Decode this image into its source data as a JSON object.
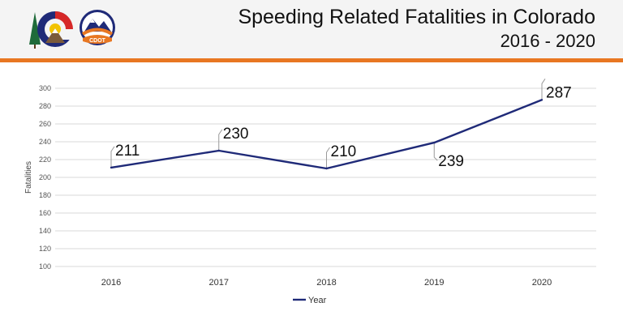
{
  "header": {
    "title": "Speeding Related Fatalities in Colorado",
    "subtitle": "2016 - 2020",
    "logos": [
      {
        "name": "colorado-state-logo",
        "icon": "colorado-c-logo"
      },
      {
        "name": "cdot-logo",
        "icon": "cdot-mountain-logo",
        "text": "CDOT"
      }
    ],
    "accent_color": "#e87722"
  },
  "chart_data": {
    "type": "line",
    "title": "Speeding Related Fatalities in Colorado",
    "subtitle": "2016 - 2020",
    "xlabel": "",
    "ylabel": "Fatalities",
    "categories": [
      "2016",
      "2017",
      "2018",
      "2019",
      "2020"
    ],
    "series": [
      {
        "name": "Year",
        "values": [
          211,
          230,
          210,
          239,
          287
        ],
        "color": "#1f2a78"
      }
    ],
    "data_labels": [
      "211",
      "230",
      "210",
      "239",
      "287"
    ],
    "ylim": [
      100,
      300
    ],
    "yticks": [
      "100",
      "120",
      "140",
      "160",
      "180",
      "200",
      "220",
      "240",
      "260",
      "280",
      "300"
    ],
    "grid": true,
    "legend": "bottom-center"
  }
}
